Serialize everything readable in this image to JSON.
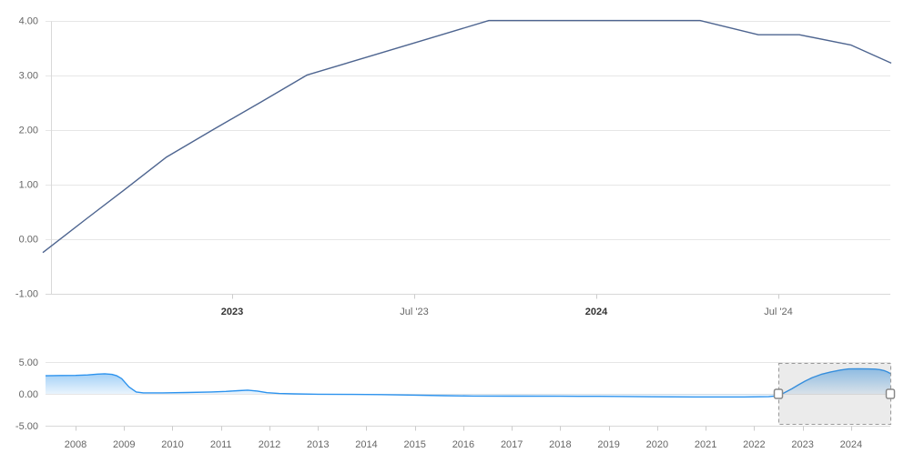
{
  "colors": {
    "background": "#ffffff",
    "grid_line": "#e6e6e6",
    "axis_line": "#d8d8d8",
    "tick_mark": "#cccccc",
    "tick_label": "#666666",
    "tick_label_strong": "#333333",
    "main_line": "#4e6590",
    "nav_line": "#2d93ee",
    "nav_fill_top": "rgba(40,145,235,0.50)",
    "nav_fill_bottom": "rgba(40,145,235,0.05)",
    "selection_fill": "rgba(110,110,110,0.14)",
    "selection_border": "#999999",
    "handle_fill": "#ffffff",
    "handle_border": "#888888"
  },
  "chart_data": [
    {
      "id": "main",
      "type": "line",
      "title": "",
      "x_unit": "decimal_year",
      "xlim": [
        2022.48,
        2024.81
      ],
      "ylim": [
        -1.0,
        4.18
      ],
      "grid": true,
      "legend": false,
      "y_ticks": [
        {
          "v": 4,
          "label": "4.00"
        },
        {
          "v": 3,
          "label": "3.00"
        },
        {
          "v": 2,
          "label": "2.00"
        },
        {
          "v": 1,
          "label": "1.00"
        },
        {
          "v": 0,
          "label": "0.00"
        },
        {
          "v": -1,
          "label": "-1.00"
        }
      ],
      "x_ticks": [
        {
          "v": 2023.0,
          "label": "2023",
          "strong": true
        },
        {
          "v": 2023.5,
          "label": "Jul '23",
          "strong": false
        },
        {
          "v": 2024.0,
          "label": "2024",
          "strong": true
        },
        {
          "v": 2024.5,
          "label": "Jul '24",
          "strong": false
        }
      ],
      "series": [
        {
          "points": [
            [
              2022.48,
              -0.25
            ],
            [
              2022.6,
              0.37
            ],
            [
              2022.7,
              0.88
            ],
            [
              2022.82,
              1.5
            ],
            [
              2022.95,
              2.01
            ],
            [
              2023.08,
              2.51
            ],
            [
              2023.205,
              3.0
            ],
            [
              2023.37,
              3.33
            ],
            [
              2023.54,
              3.67
            ],
            [
              2023.705,
              4.0
            ],
            [
              2024.285,
              4.0
            ],
            [
              2024.445,
              3.74
            ],
            [
              2024.5575,
              3.74
            ],
            [
              2024.7,
              3.55
            ],
            [
              2024.81,
              3.22
            ]
          ]
        }
      ]
    },
    {
      "id": "navigator",
      "type": "area",
      "x_unit": "decimal_year",
      "xlim": [
        2007.38,
        2024.81
      ],
      "ylim": [
        -5,
        5
      ],
      "grid": true,
      "legend": false,
      "threshold": 0,
      "y_ticks": [
        {
          "v": 5,
          "label": "5.00"
        },
        {
          "v": 0,
          "label": "0.00"
        },
        {
          "v": -5,
          "label": "-5.00"
        }
      ],
      "x_ticks": [
        {
          "v": 2008,
          "label": "2008"
        },
        {
          "v": 2009,
          "label": "2009"
        },
        {
          "v": 2010,
          "label": "2010"
        },
        {
          "v": 2011,
          "label": "2011"
        },
        {
          "v": 2012,
          "label": "2012"
        },
        {
          "v": 2013,
          "label": "2013"
        },
        {
          "v": 2014,
          "label": "2014"
        },
        {
          "v": 2015,
          "label": "2015"
        },
        {
          "v": 2016,
          "label": "2016"
        },
        {
          "v": 2017,
          "label": "2017"
        },
        {
          "v": 2018,
          "label": "2018"
        },
        {
          "v": 2019,
          "label": "2019"
        },
        {
          "v": 2020,
          "label": "2020"
        },
        {
          "v": 2021,
          "label": "2021"
        },
        {
          "v": 2022,
          "label": "2022"
        },
        {
          "v": 2023,
          "label": "2023"
        },
        {
          "v": 2024,
          "label": "2024"
        }
      ],
      "series": [
        {
          "points": [
            [
              2007.38,
              2.85
            ],
            [
              2007.7,
              2.88
            ],
            [
              2008.0,
              2.9
            ],
            [
              2008.25,
              2.97
            ],
            [
              2008.45,
              3.1
            ],
            [
              2008.6,
              3.15
            ],
            [
              2008.75,
              3.05
            ],
            [
              2008.85,
              2.85
            ],
            [
              2008.95,
              2.4
            ],
            [
              2009.1,
              1.1
            ],
            [
              2009.25,
              0.3
            ],
            [
              2009.4,
              0.15
            ],
            [
              2009.8,
              0.15
            ],
            [
              2010.3,
              0.22
            ],
            [
              2010.8,
              0.3
            ],
            [
              2011.1,
              0.38
            ],
            [
              2011.35,
              0.5
            ],
            [
              2011.55,
              0.58
            ],
            [
              2011.75,
              0.45
            ],
            [
              2011.95,
              0.18
            ],
            [
              2012.2,
              0.05
            ],
            [
              2012.5,
              0.0
            ],
            [
              2013.0,
              -0.06
            ],
            [
              2013.7,
              -0.09
            ],
            [
              2014.3,
              -0.12
            ],
            [
              2015.0,
              -0.2
            ],
            [
              2015.6,
              -0.28
            ],
            [
              2016.2,
              -0.34
            ],
            [
              2017.0,
              -0.36
            ],
            [
              2018.0,
              -0.37
            ],
            [
              2018.8,
              -0.38
            ],
            [
              2019.4,
              -0.42
            ],
            [
              2019.9,
              -0.46
            ],
            [
              2020.8,
              -0.48
            ],
            [
              2021.8,
              -0.49
            ],
            [
              2022.3,
              -0.45
            ],
            [
              2022.5,
              -0.3
            ],
            [
              2022.62,
              0.15
            ],
            [
              2022.78,
              0.8
            ],
            [
              2022.92,
              1.45
            ],
            [
              2023.05,
              2.0
            ],
            [
              2023.2,
              2.55
            ],
            [
              2023.38,
              3.05
            ],
            [
              2023.58,
              3.45
            ],
            [
              2023.78,
              3.75
            ],
            [
              2023.95,
              3.92
            ],
            [
              2024.15,
              3.95
            ],
            [
              2024.35,
              3.92
            ],
            [
              2024.5,
              3.88
            ],
            [
              2024.6,
              3.8
            ],
            [
              2024.68,
              3.65
            ],
            [
              2024.75,
              3.45
            ],
            [
              2024.81,
              3.2
            ]
          ]
        }
      ],
      "selection": {
        "from": 2022.5,
        "to": 2024.81
      }
    }
  ]
}
